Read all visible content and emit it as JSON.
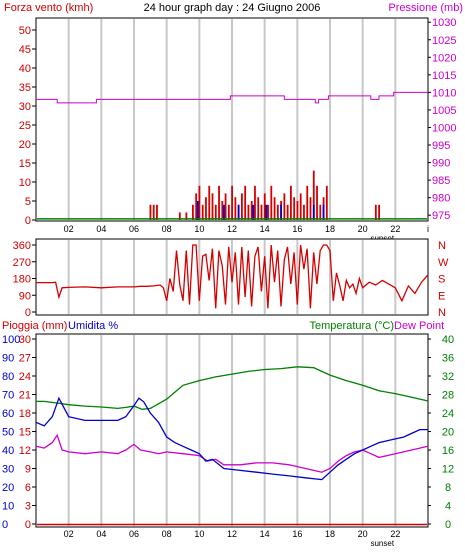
{
  "title": "24 hour graph day : 24 Giugno 2006",
  "colors": {
    "wind": "#d40000",
    "gust": "#0000cc",
    "pressure": "#cc00cc",
    "green": "#008000",
    "grid": "#c8c8c8",
    "frame": "#000000"
  },
  "x_axis": {
    "ticks": [
      2,
      4,
      6,
      8,
      10,
      12,
      14,
      16,
      18,
      20,
      22
    ],
    "tick_labels": [
      "02",
      "04",
      "06",
      "08",
      "10",
      "12",
      "14",
      "16",
      "18",
      "20",
      "22"
    ],
    "sunset_label": "sunset",
    "sunset_hour": 21.2,
    "end_label": "i"
  },
  "chart_data": [
    {
      "type": "bar",
      "name": "wind",
      "title": "24 hour graph day : 24 Giugno 2006",
      "left_label": "Forza vento (kmh)",
      "right_label": "Pressione (mb)",
      "left_ticks": [
        0,
        5,
        10,
        15,
        20,
        25,
        30,
        35,
        40,
        45,
        50
      ],
      "right_ticks": [
        975,
        980,
        985,
        990,
        995,
        1000,
        1005,
        1010,
        1015,
        1020,
        1025,
        1030
      ],
      "ylim": [
        0,
        50
      ],
      "ylim_right": [
        974.2,
        1031.2
      ],
      "wind_bars": [
        [
          7.0,
          4
        ],
        [
          7.2,
          4
        ],
        [
          7.4,
          4
        ],
        [
          8.8,
          2
        ],
        [
          9.2,
          2
        ],
        [
          9.6,
          4
        ],
        [
          9.8,
          7
        ],
        [
          10.0,
          9
        ],
        [
          10.2,
          4
        ],
        [
          10.4,
          6
        ],
        [
          10.6,
          9
        ],
        [
          10.8,
          7
        ],
        [
          11.0,
          4
        ],
        [
          11.2,
          9
        ],
        [
          11.4,
          5
        ],
        [
          11.6,
          7
        ],
        [
          11.8,
          4
        ],
        [
          12.0,
          9
        ],
        [
          12.2,
          6
        ],
        [
          12.4,
          4
        ],
        [
          12.6,
          7
        ],
        [
          12.8,
          9
        ],
        [
          13.0,
          4
        ],
        [
          13.2,
          5
        ],
        [
          13.4,
          9
        ],
        [
          13.6,
          6
        ],
        [
          13.8,
          4
        ],
        [
          14.0,
          7
        ],
        [
          14.2,
          4
        ],
        [
          14.4,
          9
        ],
        [
          14.6,
          6
        ],
        [
          14.8,
          4
        ],
        [
          15.0,
          5
        ],
        [
          15.2,
          7
        ],
        [
          15.4,
          4
        ],
        [
          15.6,
          9
        ],
        [
          15.8,
          6
        ],
        [
          16.0,
          5
        ],
        [
          16.2,
          7
        ],
        [
          16.4,
          4
        ],
        [
          16.6,
          9
        ],
        [
          16.8,
          6
        ],
        [
          17.0,
          13
        ],
        [
          17.2,
          9
        ],
        [
          17.4,
          4
        ],
        [
          17.6,
          6
        ],
        [
          17.8,
          9
        ],
        [
          20.8,
          4
        ],
        [
          21.0,
          4
        ]
      ],
      "gust_bars": [
        [
          9.9,
          5
        ],
        [
          11.5,
          4
        ],
        [
          12.4,
          4
        ],
        [
          13.3,
          4
        ],
        [
          14.1,
          4
        ],
        [
          15.0,
          4
        ],
        [
          17.0,
          4
        ],
        [
          17.6,
          4
        ]
      ],
      "green_line": 0.3,
      "pressure": [
        [
          0,
          1008
        ],
        [
          1.2,
          1008
        ],
        [
          1.3,
          1007
        ],
        [
          3.6,
          1007
        ],
        [
          3.7,
          1008
        ],
        [
          8.5,
          1008
        ],
        [
          8.6,
          1008
        ],
        [
          11.8,
          1008
        ],
        [
          11.9,
          1009
        ],
        [
          15.1,
          1009
        ],
        [
          15.2,
          1008
        ],
        [
          17.0,
          1008
        ],
        [
          17.1,
          1007
        ],
        [
          17.3,
          1008
        ],
        [
          17.8,
          1008
        ],
        [
          17.9,
          1009
        ],
        [
          20.4,
          1009
        ],
        [
          20.5,
          1008
        ],
        [
          21.0,
          1009
        ],
        [
          21.8,
          1009
        ],
        [
          21.9,
          1010
        ],
        [
          24,
          1010
        ]
      ]
    },
    {
      "type": "line",
      "name": "wind_direction",
      "left_ticks": [
        0,
        90,
        180,
        270,
        360
      ],
      "right_labels": [
        "N",
        "W",
        "S",
        "E",
        "N"
      ],
      "ylim": [
        0,
        360
      ],
      "direction": [
        [
          0,
          158
        ],
        [
          0.5,
          158
        ],
        [
          1.0,
          158
        ],
        [
          1.2,
          160
        ],
        [
          1.4,
          80
        ],
        [
          1.6,
          130
        ],
        [
          2.0,
          132
        ],
        [
          3.0,
          135
        ],
        [
          4.0,
          130
        ],
        [
          5.0,
          135
        ],
        [
          6.0,
          135
        ],
        [
          6.4,
          138
        ],
        [
          6.8,
          138
        ],
        [
          7.2,
          140
        ],
        [
          7.6,
          145
        ],
        [
          7.8,
          130
        ],
        [
          8.0,
          60
        ],
        [
          8.2,
          180
        ],
        [
          8.4,
          110
        ],
        [
          8.6,
          330
        ],
        [
          8.8,
          150
        ],
        [
          9.0,
          60
        ],
        [
          9.2,
          330
        ],
        [
          9.4,
          40
        ],
        [
          9.6,
          360
        ],
        [
          9.8,
          360
        ],
        [
          10.0,
          60
        ],
        [
          10.2,
          300
        ],
        [
          10.4,
          310
        ],
        [
          10.6,
          170
        ],
        [
          10.8,
          340
        ],
        [
          11.0,
          20
        ],
        [
          11.2,
          330
        ],
        [
          11.4,
          250
        ],
        [
          11.6,
          40
        ],
        [
          11.8,
          350
        ],
        [
          12.0,
          160
        ],
        [
          12.2,
          320
        ],
        [
          12.4,
          40
        ],
        [
          12.6,
          350
        ],
        [
          12.8,
          80
        ],
        [
          13.0,
          330
        ],
        [
          13.2,
          30
        ],
        [
          13.4,
          300
        ],
        [
          13.6,
          350
        ],
        [
          13.8,
          110
        ],
        [
          14.0,
          300
        ],
        [
          14.2,
          20
        ],
        [
          14.4,
          360
        ],
        [
          14.6,
          160
        ],
        [
          14.8,
          330
        ],
        [
          15.0,
          30
        ],
        [
          15.2,
          280
        ],
        [
          15.4,
          350
        ],
        [
          15.6,
          150
        ],
        [
          15.8,
          320
        ],
        [
          16.0,
          40
        ],
        [
          16.2,
          360
        ],
        [
          16.4,
          230
        ],
        [
          16.6,
          340
        ],
        [
          16.8,
          20
        ],
        [
          17.0,
          320
        ],
        [
          17.2,
          150
        ],
        [
          17.4,
          330
        ],
        [
          17.6,
          360
        ],
        [
          17.8,
          360
        ],
        [
          18.0,
          330
        ],
        [
          18.2,
          60
        ],
        [
          18.4,
          210
        ],
        [
          18.6,
          140
        ],
        [
          18.8,
          60
        ],
        [
          19.0,
          170
        ],
        [
          19.2,
          130
        ],
        [
          19.4,
          150
        ],
        [
          19.6,
          100
        ],
        [
          19.8,
          180
        ],
        [
          20.0,
          130
        ],
        [
          20.4,
          160
        ],
        [
          20.8,
          145
        ],
        [
          21.2,
          170
        ],
        [
          21.6,
          150
        ],
        [
          22.0,
          130
        ],
        [
          22.4,
          60
        ],
        [
          22.8,
          140
        ],
        [
          23.2,
          100
        ],
        [
          23.6,
          160
        ],
        [
          24,
          200
        ]
      ]
    },
    {
      "type": "line",
      "name": "humidity_temperature",
      "left_label_rain": "Pioggia (mm)",
      "left_label_hum": "Umidita %",
      "right_label_temp": "Temperatura (°C)",
      "right_label_dew": "Dew Point",
      "rain_ticks": [
        0,
        3,
        6,
        9,
        12,
        15,
        18,
        21,
        24,
        27,
        30
      ],
      "hum_ticks": [
        0,
        10,
        20,
        30,
        40,
        50,
        60,
        70,
        80,
        90,
        100
      ],
      "temp_ticks": [
        0,
        4,
        8,
        12,
        16,
        20,
        24,
        28,
        32,
        36,
        40
      ],
      "ylim": [
        0,
        100
      ],
      "ylim_right": [
        0,
        40
      ],
      "rain": 0,
      "humidity": [
        [
          0,
          55
        ],
        [
          0.5,
          53
        ],
        [
          1.0,
          58
        ],
        [
          1.4,
          68
        ],
        [
          1.7,
          63
        ],
        [
          2.0,
          58
        ],
        [
          3.0,
          56
        ],
        [
          4.0,
          56
        ],
        [
          5.0,
          56
        ],
        [
          5.5,
          58
        ],
        [
          6.0,
          64
        ],
        [
          6.3,
          68
        ],
        [
          6.6,
          66
        ],
        [
          7.0,
          60
        ],
        [
          7.5,
          55
        ],
        [
          8.0,
          47
        ],
        [
          8.5,
          44
        ],
        [
          9.0,
          42
        ],
        [
          9.5,
          40
        ],
        [
          10.0,
          38
        ],
        [
          10.4,
          34
        ],
        [
          10.8,
          35
        ],
        [
          11.5,
          30
        ],
        [
          12.5,
          29
        ],
        [
          13.5,
          28
        ],
        [
          14.5,
          27
        ],
        [
          15.5,
          26
        ],
        [
          16.5,
          25
        ],
        [
          17.5,
          24
        ],
        [
          18.0,
          28
        ],
        [
          18.5,
          32
        ],
        [
          19.0,
          35
        ],
        [
          19.5,
          38
        ],
        [
          20.0,
          40
        ],
        [
          20.5,
          42
        ],
        [
          21.0,
          44
        ],
        [
          21.5,
          45
        ],
        [
          22.0,
          46
        ],
        [
          22.5,
          47
        ],
        [
          23.0,
          49
        ],
        [
          23.5,
          51
        ],
        [
          24,
          51
        ]
      ],
      "dewpoint": [
        [
          0,
          42
        ],
        [
          0.5,
          41
        ],
        [
          1.0,
          44
        ],
        [
          1.3,
          48
        ],
        [
          1.6,
          40
        ],
        [
          2.0,
          39
        ],
        [
          3.0,
          38
        ],
        [
          4.0,
          39
        ],
        [
          5.0,
          38
        ],
        [
          5.5,
          40
        ],
        [
          6.0,
          43
        ],
        [
          6.4,
          40
        ],
        [
          7.0,
          39
        ],
        [
          7.5,
          38
        ],
        [
          8.0,
          39
        ],
        [
          9.0,
          38
        ],
        [
          10.0,
          37
        ],
        [
          10.5,
          34
        ],
        [
          11.0,
          35
        ],
        [
          11.5,
          32
        ],
        [
          12.5,
          32
        ],
        [
          13.5,
          33
        ],
        [
          14.5,
          33
        ],
        [
          15.5,
          32
        ],
        [
          16.5,
          30
        ],
        [
          17.0,
          29
        ],
        [
          17.5,
          28
        ],
        [
          18.0,
          30
        ],
        [
          18.5,
          34
        ],
        [
          19.0,
          37
        ],
        [
          19.5,
          39
        ],
        [
          20.0,
          40
        ],
        [
          20.5,
          38
        ],
        [
          21.0,
          36
        ],
        [
          21.5,
          37
        ],
        [
          22.0,
          38
        ],
        [
          22.5,
          39
        ],
        [
          23.0,
          40
        ],
        [
          23.5,
          41
        ],
        [
          24,
          42
        ]
      ],
      "temperature": [
        [
          0,
          26.5
        ],
        [
          0.5,
          26.5
        ],
        [
          1.0,
          26.3
        ],
        [
          2.0,
          25.8
        ],
        [
          3.0,
          25.5
        ],
        [
          4.0,
          25.3
        ],
        [
          5.0,
          25.0
        ],
        [
          5.5,
          25.2
        ],
        [
          6.0,
          25.5
        ],
        [
          6.5,
          24.8
        ],
        [
          7.0,
          25.0
        ],
        [
          7.5,
          26.0
        ],
        [
          8.0,
          27.0
        ],
        [
          8.5,
          28.5
        ],
        [
          9.0,
          30.0
        ],
        [
          10.0,
          31.0
        ],
        [
          11.0,
          31.8
        ],
        [
          12.0,
          32.4
        ],
        [
          13.0,
          33.0
        ],
        [
          14.0,
          33.4
        ],
        [
          15.0,
          33.6
        ],
        [
          16.0,
          34.0
        ],
        [
          17.0,
          33.8
        ],
        [
          17.5,
          33.0
        ],
        [
          18.0,
          32.2
        ],
        [
          19.0,
          31.0
        ],
        [
          20.0,
          30.0
        ],
        [
          21.0,
          28.8
        ],
        [
          22.0,
          28.2
        ],
        [
          23.0,
          27.4
        ],
        [
          24,
          26.6
        ]
      ]
    }
  ]
}
